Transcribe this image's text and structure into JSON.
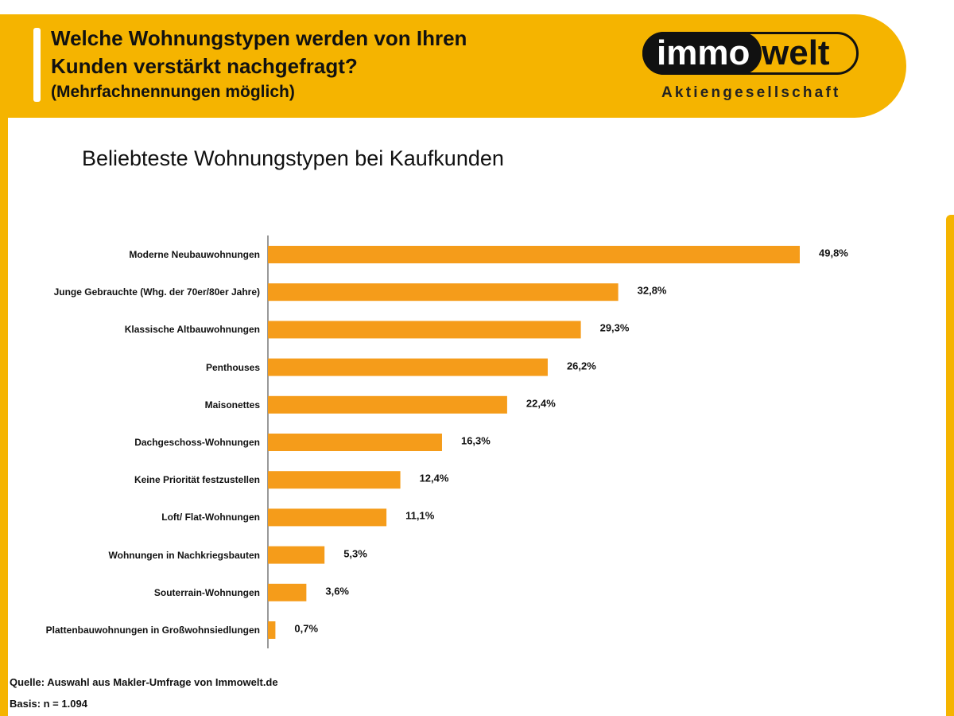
{
  "header": {
    "title_lines": [
      "Welche Wohnungstypen werden von Ihren",
      "Kunden verstärkt nachgefragt?"
    ],
    "subtitle": "(Mehrfachnennungen möglich)"
  },
  "logo": {
    "part1": "immo",
    "part2": "welt",
    "tagline": "Aktiengesellschaft"
  },
  "chart_data": {
    "type": "bar",
    "orientation": "horizontal",
    "title": "Beliebteste Wohnungstypen bei Kaufkunden",
    "color": "#f59c1a",
    "categories": [
      "Moderne Neubauwohnungen",
      "Junge Gebrauchte (Whg. der 70er/80er Jahre)",
      "Klassische Altbauwohnungen",
      "Penthouses",
      "Maisonettes",
      "Dachgeschoss-Wohnungen",
      "Keine Priorität festzustellen",
      "Loft/ Flat-Wohnungen",
      "Wohnungen in Nachkriegsbauten",
      "Souterrain-Wohnungen",
      "Plattenbauwohnungen in Großwohnsiedlungen"
    ],
    "values": [
      49.8,
      32.8,
      29.3,
      26.2,
      22.4,
      16.3,
      12.4,
      11.1,
      5.3,
      3.6,
      0.7
    ],
    "value_labels": [
      "49,8%",
      "32,8%",
      "29,3%",
      "26,2%",
      "22,4%",
      "16,3%",
      "12,4%",
      "11,1%",
      "5,3%",
      "3,6%",
      "0,7%"
    ]
  },
  "footer": {
    "source": "Quelle: Auswahl aus Makler-Umfrage von Immowelt.de",
    "basis": "Basis: n = 1.094"
  }
}
